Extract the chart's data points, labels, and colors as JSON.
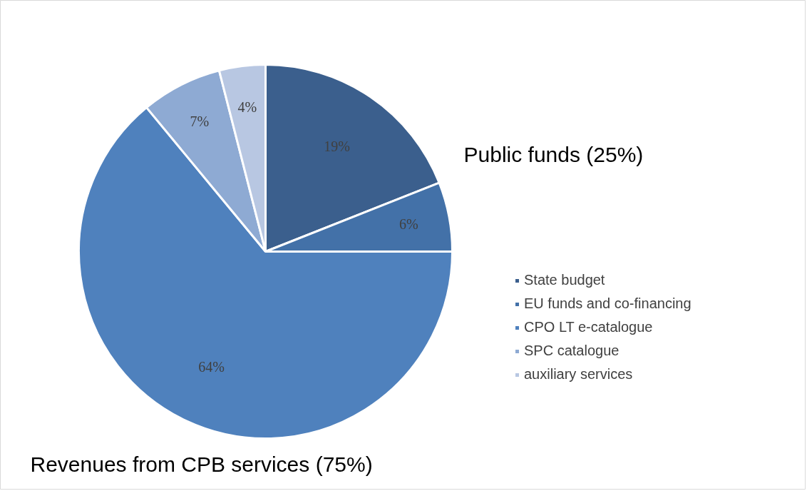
{
  "chart_data": {
    "type": "pie",
    "categories": [
      "State budget",
      "EU funds and co-financing",
      "CPO LT e-catalogue",
      "SPC catalogue",
      "auxiliary services"
    ],
    "values": [
      19,
      6,
      64,
      7,
      4
    ],
    "value_labels": [
      "19%",
      "6%",
      "64%",
      "7%",
      "4%"
    ],
    "colors": [
      "#3b5f8d",
      "#4371a8",
      "#4f81bd",
      "#8eaad3",
      "#b8c7e2"
    ],
    "legend": "right",
    "annotations": [
      "Public funds (25%)",
      "Revenues from CPB services (75%)"
    ]
  }
}
